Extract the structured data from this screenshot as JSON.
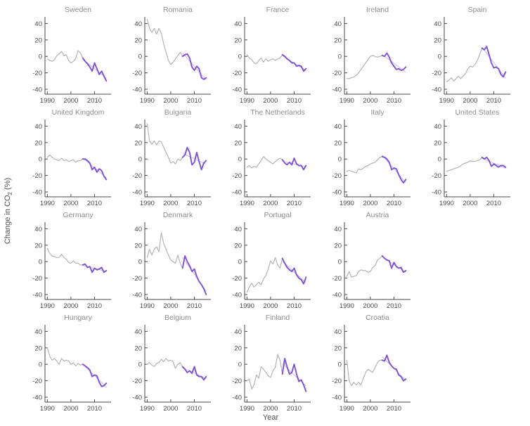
{
  "figure": {
    "xlabel": "Year",
    "ylabel": {
      "pre": "Change in CO",
      "sub": "2",
      "post": " (%)"
    }
  },
  "chart_data": {
    "type": "line",
    "title": "",
    "xlabel": "Year",
    "ylabel": "Change in CO2 (%)",
    "x_years_start": 1990,
    "x_years_end": 2015,
    "xlim": [
      1989,
      2017
    ],
    "ylim": [
      -46,
      48
    ],
    "xticks": [
      1990,
      2000,
      2010
    ],
    "yticks": [
      40,
      20,
      0,
      -20,
      -40
    ],
    "grid": false,
    "legend": "none",
    "highlight_range": [
      2005,
      2015
    ],
    "colors": {
      "line": "#b3b3b3",
      "highlight": "#7e52d2",
      "trend": "#c9baea",
      "axis": "#4a4a4a",
      "tick_text": "#4a4a4a",
      "title_text": "#8c8c8c",
      "background": "#ffffff"
    },
    "layout_rows": [
      5,
      5,
      4,
      4
    ],
    "series": [
      {
        "name": "Sweden",
        "values": [
          -3,
          -5,
          -6,
          -4,
          1,
          3,
          6,
          1,
          2,
          -5,
          -8,
          -6,
          -3,
          7,
          4,
          -2,
          -6,
          -9,
          -13,
          -18,
          -8,
          -15,
          -22,
          -18,
          -24,
          -30
        ]
      },
      {
        "name": "Romania",
        "values": [
          45,
          34,
          29,
          34,
          27,
          34,
          28,
          15,
          5,
          -5,
          -10,
          -7,
          -3,
          1,
          5,
          0,
          2,
          3,
          -2,
          -13,
          -17,
          -12,
          -15,
          -26,
          -28,
          -26
        ]
      },
      {
        "name": "France",
        "values": [
          2,
          -2,
          -4,
          -8,
          -9,
          -5,
          -2,
          -7,
          -3,
          -6,
          -4,
          -3,
          -5,
          -3,
          -2,
          2,
          0,
          -3,
          -5,
          -8,
          -8,
          -12,
          -11,
          -12,
          -18,
          -15
        ]
      },
      {
        "name": "Ireland",
        "values": [
          -27,
          -27,
          -26,
          -25,
          -23,
          -20,
          -16,
          -12,
          -8,
          -4,
          0,
          1,
          0,
          -1,
          0,
          1,
          0,
          4,
          -1,
          -8,
          -12,
          -16,
          -15,
          -17,
          -16,
          -13
        ]
      },
      {
        "name": "Spain",
        "values": [
          -31,
          -29,
          -26,
          -30,
          -27,
          -24,
          -27,
          -24,
          -21,
          -15,
          -12,
          -13,
          -10,
          -5,
          2,
          10,
          8,
          12,
          2,
          -8,
          -14,
          -13,
          -15,
          -22,
          -25,
          -19
        ]
      },
      {
        "name": "United Kingdom",
        "values": [
          2,
          5,
          2,
          0,
          -1,
          -2,
          1,
          -2,
          -1,
          -3,
          -2,
          -1,
          -4,
          -2,
          -2,
          0,
          0,
          -2,
          -5,
          -13,
          -10,
          -16,
          -12,
          -14,
          -21,
          -25
        ]
      },
      {
        "name": "Bulgaria",
        "values": [
          43,
          22,
          18,
          22,
          17,
          22,
          21,
          14,
          8,
          2,
          -5,
          -3,
          -6,
          0,
          -2,
          2,
          5,
          14,
          8,
          -7,
          -4,
          8,
          -3,
          -13,
          -5,
          -2
        ]
      },
      {
        "name": "The Netherlands",
        "values": [
          -10,
          -8,
          -11,
          -9,
          -10,
          -6,
          -2,
          3,
          0,
          -2,
          -4,
          -6,
          -3,
          -1,
          1,
          -1,
          -5,
          -7,
          -4,
          -7,
          1,
          -6,
          -8,
          -8,
          -13,
          -8
        ]
      },
      {
        "name": "Italy",
        "values": [
          -15,
          -14,
          -15,
          -16,
          -17,
          -12,
          -13,
          -11,
          -9,
          -8,
          -6,
          -5,
          -4,
          -1,
          2,
          3,
          2,
          0,
          -4,
          -13,
          -11,
          -12,
          -19,
          -25,
          -29,
          -25
        ]
      },
      {
        "name": "United States",
        "values": [
          -15,
          -14,
          -13,
          -12,
          -11,
          -10,
          -8,
          -6,
          -5,
          -4,
          -2,
          -3,
          -3,
          -2,
          -1,
          2,
          0,
          2,
          -2,
          -9,
          -6,
          -8,
          -10,
          -8,
          -8,
          -10
        ]
      },
      {
        "name": "Germany",
        "values": [
          16,
          10,
          7,
          6,
          5,
          5,
          9,
          5,
          3,
          -1,
          -2,
          1,
          -2,
          -2,
          -4,
          -4,
          -3,
          -7,
          -6,
          -13,
          -8,
          -10,
          -9,
          -7,
          -13,
          -11
        ]
      },
      {
        "name": "Denmark",
        "values": [
          5,
          15,
          8,
          15,
          18,
          12,
          35,
          22,
          15,
          8,
          2,
          0,
          -2,
          8,
          -2,
          -8,
          7,
          0,
          -5,
          -12,
          -9,
          -18,
          -24,
          -28,
          -33,
          -40
        ]
      },
      {
        "name": "Portugal",
        "values": [
          -37,
          -31,
          -26,
          -31,
          -28,
          -25,
          -28,
          -21,
          -17,
          -9,
          1,
          -3,
          5,
          -4,
          -8,
          4,
          -2,
          -7,
          -10,
          -12,
          -8,
          -16,
          -20,
          -22,
          -27,
          -19
        ]
      },
      {
        "name": "Austria",
        "values": [
          -18,
          -12,
          -19,
          -18,
          -17,
          -12,
          -10,
          -11,
          -11,
          -13,
          -12,
          -7,
          -5,
          2,
          4,
          7,
          4,
          2,
          1,
          -8,
          -1,
          -6,
          -8,
          -7,
          -13,
          -11
        ]
      },
      {
        "name": "Hungary",
        "values": [
          20,
          10,
          5,
          7,
          4,
          0,
          7,
          4,
          5,
          4,
          0,
          2,
          -2,
          1,
          -1,
          0,
          -2,
          -4,
          -7,
          -15,
          -13,
          -14,
          -22,
          -27,
          -26,
          -23
        ]
      },
      {
        "name": "Belgium",
        "values": [
          0,
          2,
          -1,
          -3,
          1,
          2,
          6,
          3,
          7,
          4,
          5,
          3,
          -5,
          0,
          2,
          -3,
          -6,
          -10,
          -8,
          -11,
          -3,
          -13,
          -15,
          -15,
          -19,
          -15
        ]
      },
      {
        "name": "Finland",
        "values": [
          -20,
          -18,
          -30,
          -25,
          -13,
          -17,
          -3,
          -6,
          -10,
          -14,
          -16,
          -8,
          -4,
          12,
          5,
          -12,
          7,
          -3,
          -12,
          -10,
          0,
          -12,
          -21,
          -19,
          -25,
          -33
        ]
      },
      {
        "name": "Croatia",
        "values": [
          5,
          -20,
          -26,
          -22,
          -25,
          -22,
          -25,
          -17,
          -10,
          -6,
          -8,
          -10,
          -4,
          2,
          5,
          5,
          4,
          11,
          2,
          -2,
          -5,
          -6,
          -13,
          -15,
          -20,
          -18
        ]
      }
    ]
  }
}
